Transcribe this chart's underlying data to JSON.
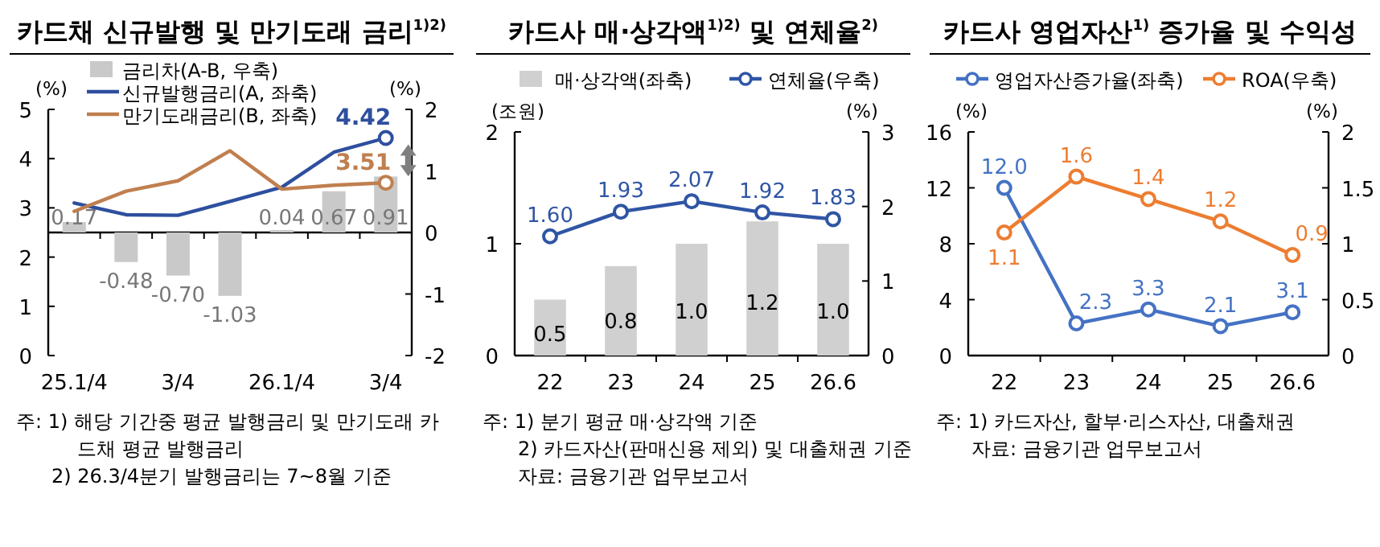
{
  "chart_data": [
    {
      "type": "line",
      "title": "카드채 신규발행 및 만기도래 금리$^{1)2)}$",
      "ylabel": "(%)",
      "y2label": "(%)",
      "categories": [
        "25.1/4",
        null,
        "3/4",
        null,
        "26.1/4",
        null,
        "3/4"
      ],
      "ylim": [
        0,
        5
      ],
      "yticks": [
        0,
        1,
        2,
        3,
        4,
        5
      ],
      "y2lim": [
        -2,
        2
      ],
      "y2ticks": [
        -2,
        -1,
        0,
        1,
        2
      ],
      "legend": "top left",
      "series": [
        {
          "name": "금리차(A-B, 우축)",
          "type": "bar",
          "axis": "y2",
          "color": "#c9c9c9",
          "values": [
            0.17,
            -0.48,
            -0.7,
            -1.03,
            0.04,
            0.67,
            0.91
          ],
          "value_labels": [
            "0.17",
            "-0.48",
            "-0.70",
            "-1.03",
            "0.04",
            "0.67",
            "0.91"
          ]
        },
        {
          "name": "신규발행금리(A, 좌축)",
          "type": "line",
          "color": "#2e4f9e",
          "values": [
            3.1,
            2.86,
            2.85,
            3.13,
            3.42,
            4.13,
            4.42
          ],
          "value_labels": [
            null,
            null,
            null,
            null,
            null,
            null,
            "4.42"
          ]
        },
        {
          "name": "만기도래금리(B, 좌축)",
          "type": "line",
          "color": "#c07f4f",
          "values": [
            2.93,
            3.34,
            3.55,
            4.16,
            3.38,
            3.46,
            3.51
          ],
          "value_labels": [
            null,
            null,
            null,
            null,
            null,
            null,
            "3.51"
          ]
        }
      ],
      "annotations": [
        "주: 1) 해당 기간중 평균 발행금리 및 만기도래 카드채 평균 발행금리",
        "2) 26.3/4분기 발행금리는 7~8월 기준"
      ]
    },
    {
      "type": "bar",
      "title": "카드사 매·상각액$^{1)2)}$ 및 연체율$^{2)}$",
      "ylabel": "(조원)",
      "y2label": "(%)",
      "categories": [
        "22",
        "23",
        "24",
        "25",
        "26.6"
      ],
      "ylim": [
        0,
        2
      ],
      "yticks": [
        0,
        1,
        2
      ],
      "y2lim": [
        0,
        3
      ],
      "y2ticks": [
        0,
        1,
        2,
        3
      ],
      "legend": "top",
      "marker": "circle",
      "series": [
        {
          "name": "매·상각액(좌축)",
          "type": "bar",
          "color": "#d0d0d0",
          "values": [
            0.5,
            0.8,
            1.0,
            1.2,
            1.0
          ],
          "value_labels": [
            "0.5",
            "0.8",
            "1.0",
            "1.2",
            "1.0"
          ]
        },
        {
          "name": "연체율(우축)",
          "type": "line",
          "axis": "y2",
          "color": "#2f55a4",
          "values": [
            1.6,
            1.93,
            2.07,
            1.92,
            1.83
          ],
          "value_labels": [
            "1.60",
            "1.93",
            "2.07",
            "1.92",
            "1.83"
          ]
        }
      ],
      "annotations": [
        "주: 1) 분기 평균 매·상각액 기준",
        "2) 카드자산(판매신용 제외) 및 대출채권 기준",
        "자료: 금융기관 업무보고서"
      ]
    },
    {
      "type": "line",
      "title": "카드사 영업자산$^{1)}$ 증가율 및 수익성",
      "ylabel": "(%)",
      "y2label": "(%)",
      "categories": [
        "22",
        "23",
        "24",
        "25",
        "26.6"
      ],
      "ylim": [
        0,
        16
      ],
      "yticks": [
        0,
        4,
        8,
        12,
        16
      ],
      "y2lim": [
        0,
        2
      ],
      "y2ticks": [
        0,
        0.5,
        1,
        1.5,
        2
      ],
      "legend": "top",
      "marker": "circle",
      "series": [
        {
          "name": "영업자산증가율(좌축)",
          "color": "#4472c4",
          "values": [
            12.0,
            2.3,
            3.3,
            2.1,
            3.1
          ],
          "value_labels": [
            "12.0",
            "2.3",
            "3.3",
            "2.1",
            "3.1"
          ]
        },
        {
          "name": "ROA(우축)",
          "axis": "y2",
          "color": "#ed7d31",
          "values": [
            1.1,
            1.6,
            1.4,
            1.2,
            0.9
          ],
          "value_labels": [
            "1.1",
            "1.6",
            "1.4",
            "1.2",
            "0.9"
          ]
        }
      ],
      "annotations": [
        "주: 1) 카드자산, 할부·리스자산, 대출채권",
        "자료: 금융기관 업무보고서"
      ]
    }
  ]
}
